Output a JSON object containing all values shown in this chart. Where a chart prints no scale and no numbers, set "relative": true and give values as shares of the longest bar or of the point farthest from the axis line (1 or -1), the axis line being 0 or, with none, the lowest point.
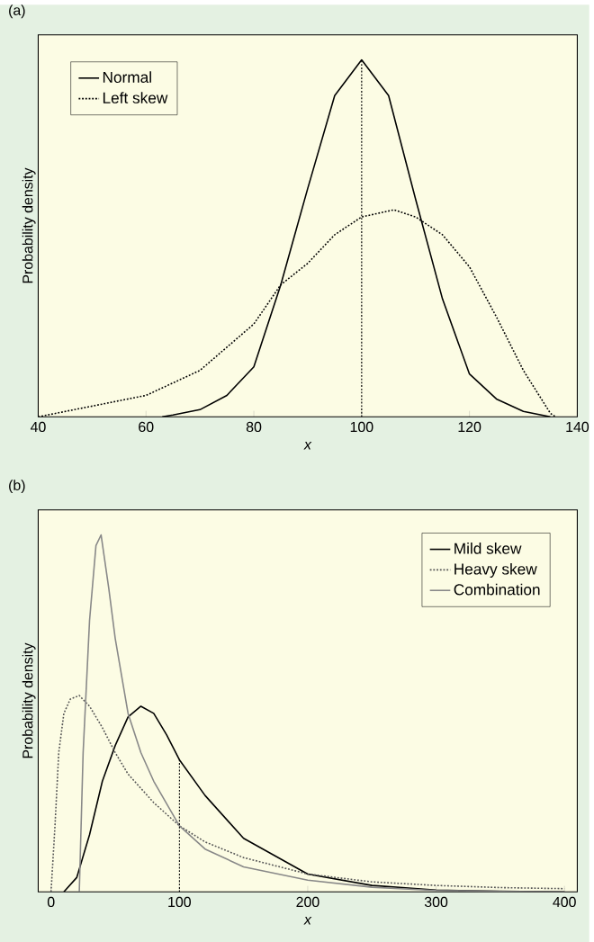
{
  "chart_data": [
    {
      "type": "line",
      "title": "(a)",
      "xlabel": "x",
      "ylabel": "Probability density",
      "relative": true,
      "xlim": [
        40,
        140
      ],
      "xticks": [
        40,
        60,
        80,
        100,
        120,
        140
      ],
      "legend": "top left",
      "grid": false,
      "series": [
        {
          "name": "Normal",
          "color": "#000000",
          "line_style": "solid",
          "x": [
            63,
            65,
            70,
            75,
            80,
            85,
            90,
            95,
            100,
            105,
            110,
            115,
            120,
            125,
            130,
            135
          ],
          "values": [
            0,
            0.005,
            0.02,
            0.06,
            0.14,
            0.37,
            0.64,
            0.9,
            1,
            0.9,
            0.61,
            0.33,
            0.12,
            0.05,
            0.015,
            0
          ]
        },
        {
          "name": "Left skew",
          "color": "#000000",
          "line_style": "dotted",
          "x": [
            40,
            50,
            60,
            70,
            80,
            85,
            90,
            95,
            100,
            106,
            110,
            115,
            120,
            125,
            130,
            135,
            136
          ],
          "values": [
            0,
            0.03,
            0.06,
            0.13,
            0.26,
            0.37,
            0.43,
            0.51,
            0.56,
            0.58,
            0.56,
            0.51,
            0.42,
            0.28,
            0.13,
            0.01,
            0
          ]
        },
        {
          "type": "line",
          "color": "#000000",
          "line_style": "dotted",
          "x": [
            100,
            100
          ],
          "values": [
            0,
            1
          ]
        }
      ]
    },
    {
      "type": "line",
      "title": "(b)",
      "xlabel": "x",
      "ylabel": "Probability density",
      "relative": true,
      "xlim": [
        -10,
        410
      ],
      "xticks": [
        0,
        100,
        200,
        300,
        400
      ],
      "legend": "top right",
      "grid": false,
      "series": [
        {
          "name": "Mild skew",
          "color": "#000000",
          "line_style": "solid",
          "x": [
            10,
            20,
            30,
            40,
            50,
            60,
            70,
            80,
            90,
            100,
            120,
            150,
            200,
            250,
            300,
            350,
            400
          ],
          "values": [
            0,
            0.04,
            0.16,
            0.31,
            0.41,
            0.49,
            0.52,
            0.5,
            0.44,
            0.37,
            0.27,
            0.15,
            0.05,
            0.018,
            0.005,
            0.002,
            0
          ]
        },
        {
          "name": "Heavy skew",
          "color": "#555555",
          "line_style": "dotted",
          "x": [
            0,
            3,
            6,
            10,
            15,
            22,
            30,
            40,
            50,
            60,
            80,
            100,
            120,
            150,
            200,
            250,
            300,
            350,
            400
          ],
          "values": [
            0,
            0.18,
            0.39,
            0.5,
            0.54,
            0.55,
            0.52,
            0.46,
            0.39,
            0.33,
            0.25,
            0.185,
            0.14,
            0.096,
            0.05,
            0.028,
            0.018,
            0.012,
            0.009
          ]
        },
        {
          "name": "Combination",
          "color": "#888888",
          "line_style": "solid",
          "x": [
            22,
            25,
            30,
            35,
            39,
            45,
            50,
            60,
            70,
            80,
            100,
            120,
            150,
            200,
            250,
            300,
            350,
            400
          ],
          "values": [
            0,
            0.39,
            0.76,
            0.97,
            1,
            0.85,
            0.71,
            0.5,
            0.39,
            0.31,
            0.185,
            0.12,
            0.07,
            0.033,
            0.013,
            0.004,
            0.001,
            0
          ]
        },
        {
          "type": "line",
          "color": "#000000",
          "line_style": "dotted",
          "x": [
            100,
            100
          ],
          "values": [
            0,
            0.37
          ]
        }
      ]
    }
  ]
}
